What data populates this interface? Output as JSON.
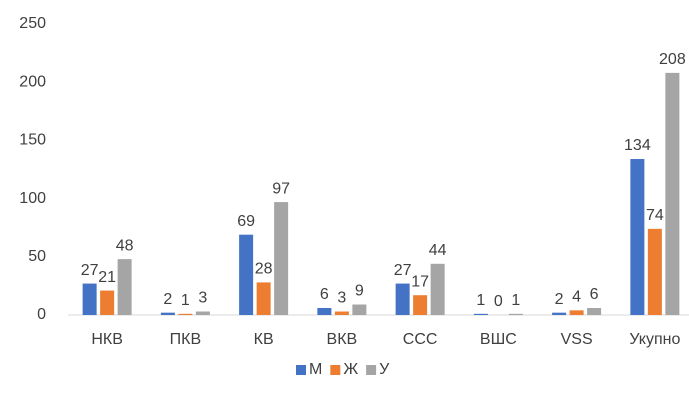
{
  "chart_data": {
    "type": "bar",
    "categories": [
      "НКВ",
      "ПКВ",
      "КВ",
      "ВКВ",
      "ССС",
      "ВШС",
      "VSS",
      "Укупно"
    ],
    "series": [
      {
        "name": "М",
        "color": "#4472c4",
        "values": [
          27,
          2,
          69,
          6,
          27,
          1,
          2,
          134
        ]
      },
      {
        "name": "Ж",
        "color": "#ed7d31",
        "values": [
          21,
          1,
          28,
          3,
          17,
          0,
          4,
          74
        ]
      },
      {
        "name": "У",
        "color": "#a5a5a5",
        "values": [
          48,
          3,
          97,
          9,
          44,
          1,
          6,
          208
        ]
      }
    ],
    "ylim": [
      0,
      250
    ],
    "yticks": [
      0,
      50,
      100,
      150,
      200,
      250
    ],
    "grid": false,
    "legend": "bottom"
  }
}
